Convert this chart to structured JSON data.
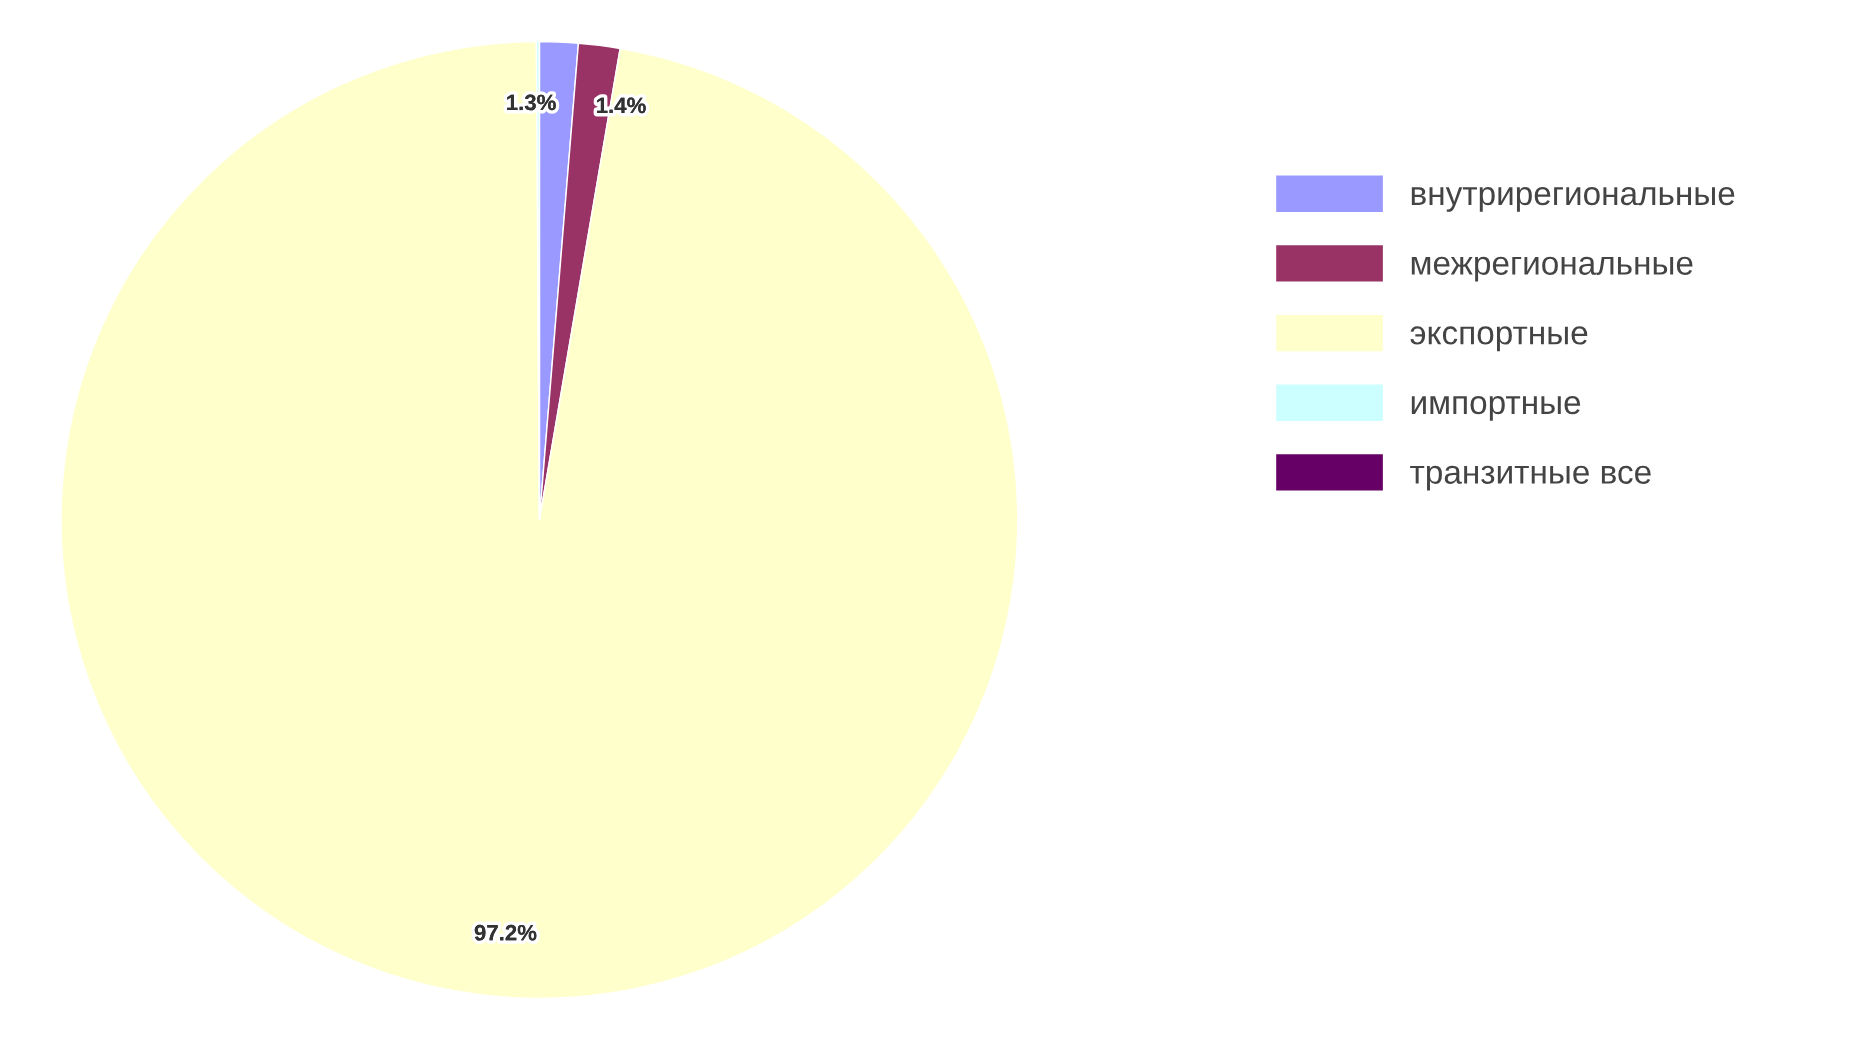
{
  "chart_data": {
    "type": "pie",
    "categories": [
      "внутрирегиональные",
      "межрегиональные",
      "экспортные",
      "импортные",
      "транзитные все"
    ],
    "values": [
      1.3,
      1.4,
      97.2,
      0.1,
      0
    ],
    "colors": [
      "#9999ff",
      "#993366",
      "#ffffcc",
      "#ccffff",
      "#660066"
    ],
    "value_labels": [
      "1.3%",
      "1.4%",
      "97.2%",
      null,
      null
    ],
    "legend": "right"
  }
}
